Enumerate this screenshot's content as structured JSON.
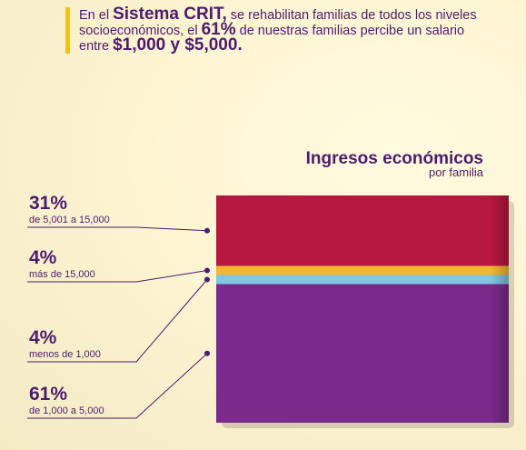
{
  "header": {
    "runs": [
      {
        "text": "En el ",
        "strong": false
      },
      {
        "text": "Sistema CRIT,",
        "strong": true
      },
      {
        "text": " se rehabilitan familias de todos los niveles socioeconómicos, el ",
        "strong": false
      },
      {
        "text": "61%",
        "strong": true
      },
      {
        "text": " de nuestras familias percibe un salario entre ",
        "strong": false
      },
      {
        "text": "$1,000 y $5,000.",
        "strong": true
      }
    ]
  },
  "chart_data": {
    "type": "stacked-bar",
    "title": "Ingresos económicos",
    "subtitle": "por familia",
    "ylim": [
      0,
      100
    ],
    "series": [
      {
        "name": "de 1,000 a 5,000",
        "color": "#7b2a8c",
        "values": [
          61
        ],
        "value_labels": [
          "61%"
        ]
      },
      {
        "name": "menos de 1,000",
        "color": "#7ec8e3",
        "values": [
          4
        ],
        "value_labels": [
          "4%"
        ]
      },
      {
        "name": "más de 15,000",
        "color": "#f2b731",
        "values": [
          4
        ],
        "value_labels": [
          "4%"
        ]
      },
      {
        "name": "de 5,001 a 15,000",
        "color": "#b8173f",
        "values": [
          31
        ],
        "value_labels": [
          "31%"
        ]
      }
    ]
  }
}
